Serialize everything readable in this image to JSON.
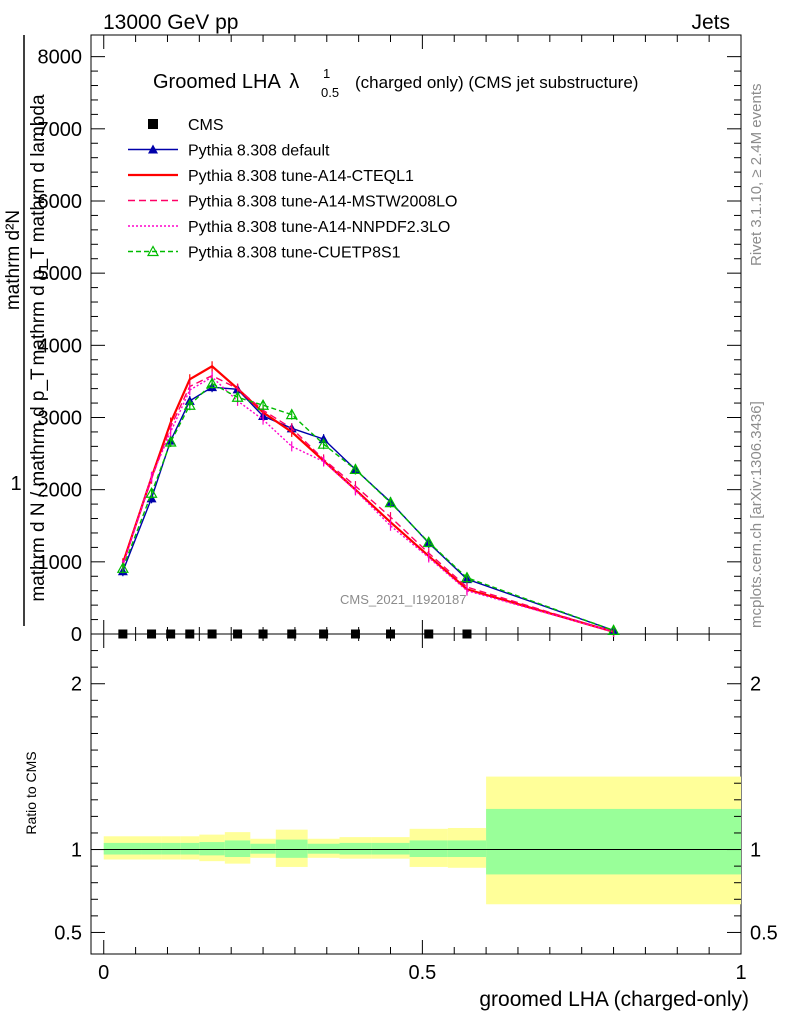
{
  "header": {
    "left": "13000 GeV pp",
    "right": "Jets"
  },
  "side_text": {
    "rivet": "Rivet 3.1.10, ≥ 2.4M events",
    "mcplots": "mcplots.cern.ch [arXiv:1306.3436]"
  },
  "watermark": "CMS_2021_I1920187",
  "chart_data": [
    {
      "type": "line",
      "title_main": "Groomed LHA",
      "title_symbol": "λ",
      "title_sup": "1",
      "title_sub": "0.5",
      "title_rest": "(charged only) (CMS jet substructure)",
      "ylabel_numerator": "mathrm d²N",
      "ylabel_numerator_extra": "mathrm d p_T mathrm d lambda",
      "ylabel_one": "1",
      "ylabel_denominator": "mathrm d N / mathrm d p_T",
      "ylim": [
        0,
        8300
      ],
      "y_ticks": [
        "0",
        "1000",
        "2000",
        "3000",
        "4000",
        "5000",
        "6000",
        "7000",
        "8000"
      ],
      "xlim": [
        -0.02,
        1.0
      ],
      "legend_position": "top-left",
      "x": [
        0.03,
        0.075,
        0.105,
        0.135,
        0.17,
        0.21,
        0.25,
        0.295,
        0.345,
        0.395,
        0.45,
        0.51,
        0.57,
        0.8
      ],
      "series": [
        {
          "name": "CMS",
          "color": "#000000",
          "style": "points",
          "values": [
            0,
            0,
            0,
            0,
            0,
            0,
            0,
            0,
            0,
            0,
            0,
            0,
            0,
            null
          ]
        },
        {
          "name": "Pythia 8.308 default",
          "color": "#0000aa",
          "style": "solid",
          "marker": "triangle-filled",
          "values": [
            870,
            1880,
            2680,
            3230,
            3420,
            3390,
            3020,
            2850,
            2700,
            2280,
            1830,
            1260,
            760,
            50
          ]
        },
        {
          "name": "Pythia 8.308 tune-A14-CTEQL1",
          "color": "#ff0000",
          "style": "solid",
          "marker": "none",
          "values": [
            980,
            2170,
            2930,
            3530,
            3710,
            3400,
            3070,
            2800,
            2400,
            2000,
            1550,
            1080,
            620,
            30
          ]
        },
        {
          "name": "Pythia 8.308 tune-A14-MSTW2008LO",
          "color": "#ff0066",
          "style": "dashed",
          "marker": "none",
          "values": [
            960,
            2150,
            2870,
            3430,
            3580,
            3400,
            3100,
            2850,
            2420,
            2050,
            1620,
            1120,
            650,
            30
          ]
        },
        {
          "name": "Pythia 8.308 tune-A14-NNPDF2.3LO",
          "color": "#ff00cc",
          "style": "dotted",
          "marker": "none",
          "values": [
            950,
            2180,
            2800,
            3380,
            3560,
            3230,
            2970,
            2600,
            2390,
            1990,
            1500,
            1060,
            600,
            30
          ]
        },
        {
          "name": "Pythia 8.308 tune-CUETP8S1",
          "color": "#00bb00",
          "style": "dashed",
          "marker": "triangle-open",
          "values": [
            910,
            1950,
            2660,
            3170,
            3470,
            3280,
            3170,
            3040,
            2630,
            2280,
            1820,
            1270,
            780,
            50
          ]
        }
      ]
    },
    {
      "type": "area",
      "ylabel": "Ratio to CMS",
      "xlabel": "groomed LHA (charged-only)",
      "xlim": [
        -0.02,
        1.0
      ],
      "ylim": [
        0.37,
        2.3
      ],
      "y_ticks": [
        "0.5",
        "1",
        "2"
      ],
      "x_ticks": [
        "0",
        "0.5",
        "1"
      ],
      "reference_line": 1,
      "bins": [
        {
          "x_low": 0.0,
          "x_high": 0.06,
          "stat": [
            0.97,
            1.04
          ],
          "total": [
            0.94,
            1.08
          ]
        },
        {
          "x_low": 0.06,
          "x_high": 0.09,
          "stat": [
            0.97,
            1.04
          ],
          "total": [
            0.94,
            1.08
          ]
        },
        {
          "x_low": 0.09,
          "x_high": 0.12,
          "stat": [
            0.97,
            1.04
          ],
          "total": [
            0.94,
            1.08
          ]
        },
        {
          "x_low": 0.12,
          "x_high": 0.15,
          "stat": [
            0.97,
            1.04
          ],
          "total": [
            0.94,
            1.08
          ]
        },
        {
          "x_low": 0.15,
          "x_high": 0.19,
          "stat": [
            0.965,
            1.045
          ],
          "total": [
            0.93,
            1.09
          ]
        },
        {
          "x_low": 0.19,
          "x_high": 0.23,
          "stat": [
            0.955,
            1.055
          ],
          "total": [
            0.915,
            1.105
          ]
        },
        {
          "x_low": 0.23,
          "x_high": 0.27,
          "stat": [
            0.975,
            1.035
          ],
          "total": [
            0.95,
            1.065
          ]
        },
        {
          "x_low": 0.27,
          "x_high": 0.32,
          "stat": [
            0.95,
            1.06
          ],
          "total": [
            0.895,
            1.12
          ]
        },
        {
          "x_low": 0.32,
          "x_high": 0.37,
          "stat": [
            0.975,
            1.035
          ],
          "total": [
            0.95,
            1.065
          ]
        },
        {
          "x_low": 0.37,
          "x_high": 0.42,
          "stat": [
            0.97,
            1.04
          ],
          "total": [
            0.945,
            1.075
          ]
        },
        {
          "x_low": 0.42,
          "x_high": 0.48,
          "stat": [
            0.97,
            1.04
          ],
          "total": [
            0.945,
            1.075
          ]
        },
        {
          "x_low": 0.48,
          "x_high": 0.54,
          "stat": [
            0.955,
            1.055
          ],
          "total": [
            0.895,
            1.125
          ]
        },
        {
          "x_low": 0.54,
          "x_high": 0.6,
          "stat": [
            0.955,
            1.055
          ],
          "total": [
            0.89,
            1.13
          ]
        },
        {
          "x_low": 0.6,
          "x_high": 1.0,
          "stat": [
            0.85,
            1.245
          ],
          "total": [
            0.67,
            1.44
          ]
        }
      ],
      "band_colors": {
        "stat": "#99ff99",
        "total": "#ffff99"
      }
    }
  ]
}
